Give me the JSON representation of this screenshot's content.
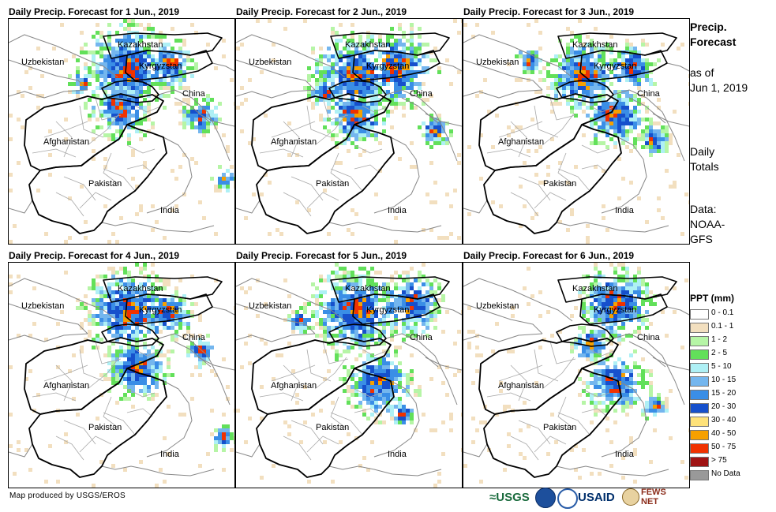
{
  "panels": [
    {
      "title": "Daily Precip. Forecast for 1 Jun., 2019"
    },
    {
      "title": "Daily Precip. Forecast for 2 Jun., 2019"
    },
    {
      "title": "Daily Precip. Forecast for 3 Jun., 2019"
    },
    {
      "title": "Daily Precip. Forecast for 4 Jun., 2019"
    },
    {
      "title": "Daily Precip. Forecast for 5 Jun., 2019"
    },
    {
      "title": "Daily Precip. Forecast for 6 Jun., 2019"
    }
  ],
  "map_labels": {
    "kazakhstan": "Kazakhstan",
    "uzbekistan": "Uzbekistan",
    "kyrgyzstan": "Kyrgyzstan",
    "china": "China",
    "afghanistan": "Afghanistan",
    "pakistan": "Pakistan",
    "india": "India"
  },
  "side": {
    "title_line1": "Precip.",
    "title_line2": "Forecast",
    "asof_line1": "as of",
    "asof_line2": "Jun 1, 2019",
    "daily_line1": "Daily",
    "daily_line2": "Totals",
    "data_line1": "Data:",
    "data_line2": "NOAA-",
    "data_line3": "GFS"
  },
  "legend": {
    "title": "PPT (mm)",
    "items": [
      {
        "label": "0 - 0.1",
        "color": "#ffffff"
      },
      {
        "label": "0.1 - 1",
        "color": "#f2dfbf"
      },
      {
        "label": "1 - 2",
        "color": "#b6f5a6"
      },
      {
        "label": "2 - 5",
        "color": "#62e05a"
      },
      {
        "label": "5 - 10",
        "color": "#aef0f5"
      },
      {
        "label": "10 - 15",
        "color": "#74b6ee"
      },
      {
        "label": "15 - 20",
        "color": "#3a8ee6"
      },
      {
        "label": "20 - 30",
        "color": "#1650cc"
      },
      {
        "label": "30 - 40",
        "color": "#fee27a"
      },
      {
        "label": "40 - 50",
        "color": "#f6a000"
      },
      {
        "label": "50 - 75",
        "color": "#f03200"
      },
      {
        "label": "> 75",
        "color": "#a01414"
      },
      {
        "label": "No Data",
        "color": "#999999"
      }
    ]
  },
  "credit": "Map produced by USGS/EROS",
  "logos": {
    "usgs": "≈USGS",
    "usaid": "USAID",
    "fews": "FEWS NET"
  }
}
